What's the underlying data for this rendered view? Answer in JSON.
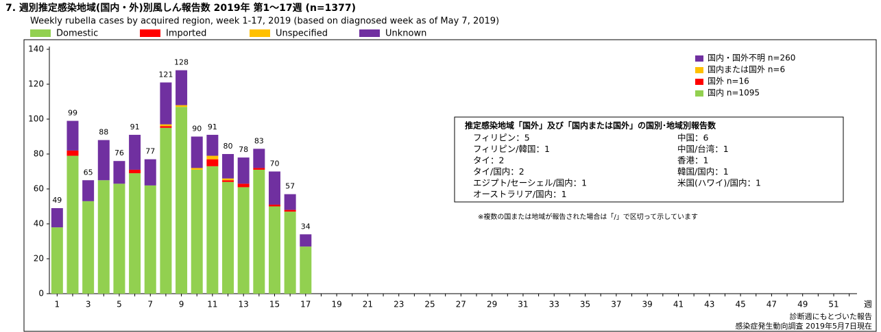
{
  "chart_data": {
    "type": "bar",
    "stacked": true,
    "title": "7. 週別推定感染地域(国内・外)別風しん報告数 2019年 第1～17週 (n=1377)",
    "subtitle": "Weekly rubella cases by acquired region, week 1-17, 2019 (based on diagnosed week as of May 7, 2019)",
    "categories": [
      "1",
      null,
      "3",
      null,
      "5",
      null,
      "7",
      null,
      "9",
      null,
      "11",
      null,
      "13",
      null,
      "15",
      null,
      "17",
      null,
      "19",
      null,
      "21",
      null,
      "23",
      null,
      "25",
      null,
      "27",
      null,
      "29",
      null,
      "31",
      null,
      "33",
      null,
      "35",
      null,
      "37",
      null,
      "39",
      null,
      "41",
      null,
      "43",
      null,
      "45",
      null,
      "47",
      null,
      "49",
      null,
      "51",
      null
    ],
    "x_unit_label": "週",
    "series": [
      {
        "name": "Domestic",
        "color": "#92d050",
        "values": [
          38,
          79,
          53,
          65,
          63,
          69,
          62,
          95,
          107,
          71,
          73,
          64,
          61,
          71,
          50,
          47,
          27,
          null,
          null,
          null,
          null,
          null,
          null,
          null,
          null,
          null,
          null,
          null,
          null,
          null,
          null,
          null,
          null,
          null,
          null,
          null,
          null,
          null,
          null,
          null,
          null,
          null,
          null,
          null,
          null,
          null,
          null,
          null,
          null,
          null,
          null,
          null
        ]
      },
      {
        "name": "Imported",
        "color": "#ff0000",
        "values": [
          0,
          3,
          0,
          0,
          0,
          2,
          0,
          1,
          0,
          0,
          4,
          1,
          2,
          1,
          1,
          1,
          0,
          null,
          null,
          null,
          null,
          null,
          null,
          null,
          null,
          null,
          null,
          null,
          null,
          null,
          null,
          null,
          null,
          null,
          null,
          null,
          null,
          null,
          null,
          null,
          null,
          null,
          null,
          null,
          null,
          null,
          null,
          null,
          null,
          null,
          null,
          null
        ]
      },
      {
        "name": "Unspecified",
        "color": "#ffc000",
        "values": [
          0,
          0,
          0,
          0,
          0,
          0,
          0,
          1,
          1,
          1,
          2,
          1,
          0,
          0,
          0,
          0,
          0,
          null,
          null,
          null,
          null,
          null,
          null,
          null,
          null,
          null,
          null,
          null,
          null,
          null,
          null,
          null,
          null,
          null,
          null,
          null,
          null,
          null,
          null,
          null,
          null,
          null,
          null,
          null,
          null,
          null,
          null,
          null,
          null,
          null,
          null,
          null
        ]
      },
      {
        "name": "Unknown",
        "color": "#7030a0",
        "values": [
          11,
          17,
          12,
          23,
          13,
          20,
          15,
          24,
          20,
          18,
          12,
          14,
          15,
          11,
          19,
          9,
          7,
          null,
          null,
          null,
          null,
          null,
          null,
          null,
          null,
          null,
          null,
          null,
          null,
          null,
          null,
          null,
          null,
          null,
          null,
          null,
          null,
          null,
          null,
          null,
          null,
          null,
          null,
          null,
          null,
          null,
          null,
          null,
          null,
          null,
          null,
          null
        ]
      }
    ],
    "totals": [
      49,
      99,
      65,
      88,
      76,
      91,
      77,
      121,
      128,
      90,
      91,
      80,
      78,
      83,
      70,
      57,
      34,
      null,
      null,
      null,
      null,
      null,
      null,
      null,
      null,
      null,
      null,
      null,
      null,
      null,
      null,
      null,
      null,
      null,
      null,
      null,
      null,
      null,
      null,
      null,
      null,
      null,
      null,
      null,
      null,
      null,
      null,
      null,
      null,
      null,
      null,
      null
    ],
    "ylim": [
      0,
      140
    ],
    "yticks": [
      0,
      20,
      40,
      60,
      80,
      100,
      120,
      140
    ],
    "inner_legend": [
      "国内・国外不明 n=260",
      "国内または国外 n=6",
      "国外 n=16",
      "国内 n=1095"
    ],
    "box_title": "推定感染地域「国外」及び「国内または国外」の国別･地域別報告数",
    "box_left": [
      "フィリピン：5",
      "フィリピン/韓国：1",
      "タイ：2",
      "タイ/国内：2",
      "エジプト/セーシェル/国内：1",
      "オーストラリア/国内：1"
    ],
    "box_right": [
      "中国：6",
      "中国/台湾：1",
      "香港：1",
      "韓国/国内：1",
      "米国(ハワイ)/国内：1"
    ],
    "note": "※複数の国または地域が報告された場合は「/」で区切って示しています",
    "source": [
      "診断週にもとづいた報告",
      "感染症発生動向調査 2019年5月7日現在"
    ]
  }
}
